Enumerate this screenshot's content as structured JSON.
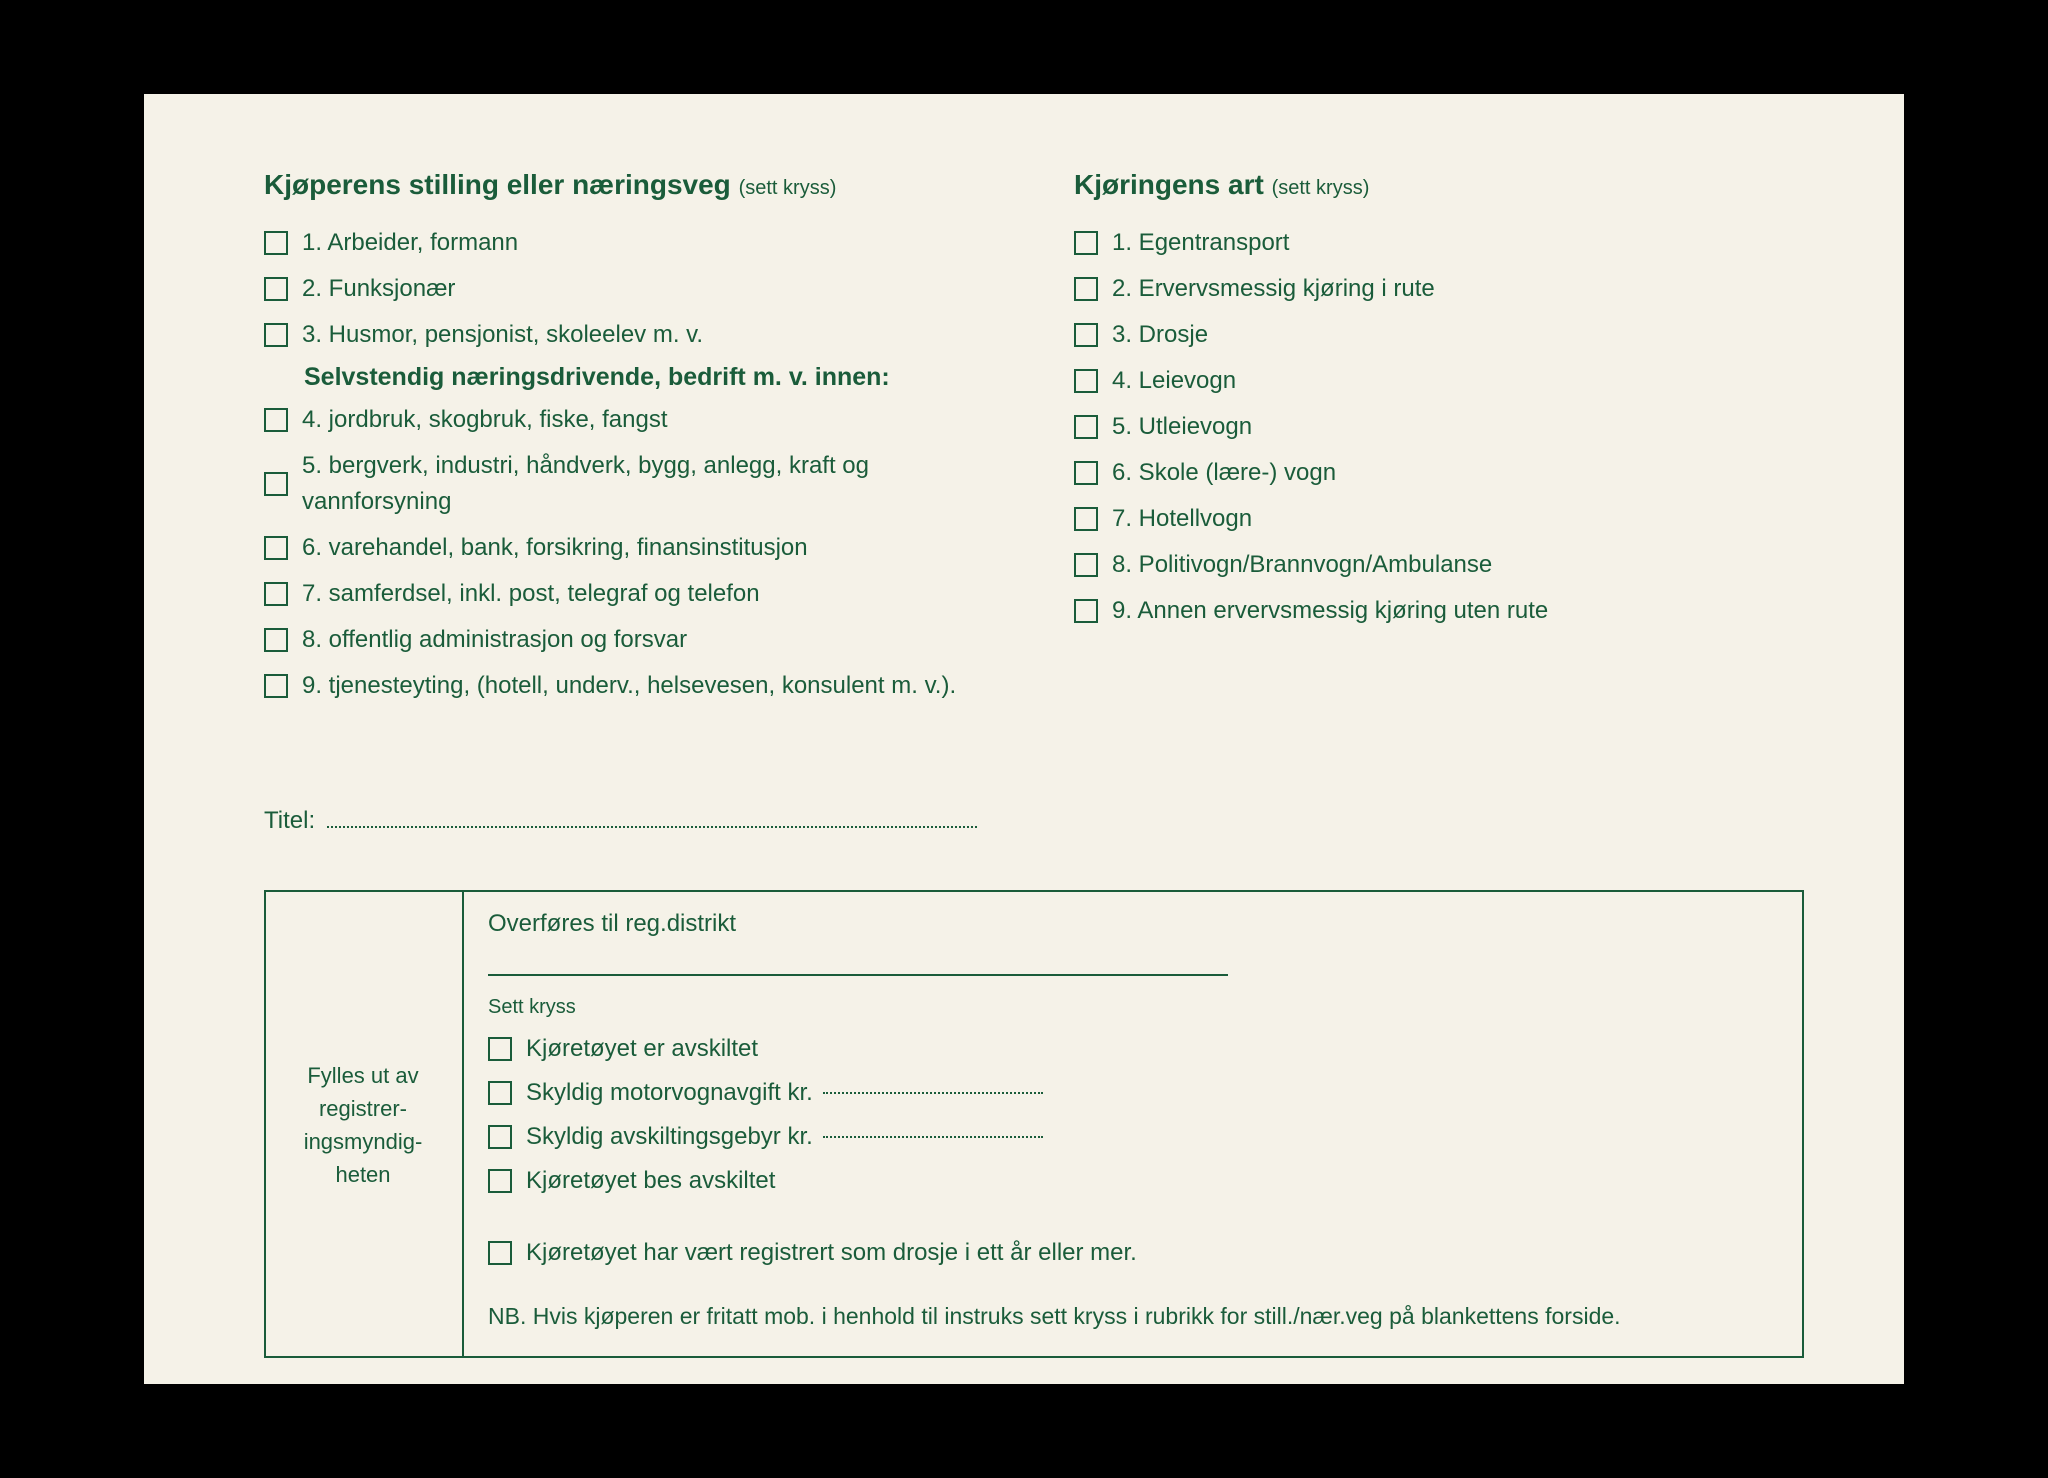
{
  "colors": {
    "ink": "#1a5c3a",
    "paper": "#f5f2e8",
    "background": "#000000"
  },
  "left_section": {
    "title": "Kjøperens stilling eller næringsveg",
    "hint": "(sett kryss)",
    "items_a": [
      "1. Arbeider, formann",
      "2. Funksjonær",
      "3. Husmor, pensjonist, skoleelev m. v."
    ],
    "subheading": "Selvstendig næringsdrivende, bedrift m. v. innen:",
    "items_b": [
      "4. jordbruk, skogbruk, fiske, fangst",
      "5. bergverk, industri, håndverk, bygg, anlegg, kraft og vannforsyning",
      "6. varehandel, bank, forsikring, finansinstitusjon",
      "7. samferdsel, inkl. post, telegraf og telefon",
      "8. offentlig administrasjon og forsvar",
      "9. tjenesteyting, (hotell, underv., helsevesen, konsulent m. v.)."
    ]
  },
  "right_section": {
    "title": "Kjøringens art",
    "hint": "(sett kryss)",
    "items": [
      "1. Egentransport",
      "2. Ervervsmessig kjøring i rute",
      "3. Drosje",
      "4. Leievogn",
      "5. Utleievogn",
      "6. Skole (lære-) vogn",
      "7. Hotellvogn",
      "8. Politivogn/Brannvogn/Ambulanse",
      "9. Annen ervervsmessig kjøring uten rute"
    ]
  },
  "titel_label": "Titel:",
  "bottom_box": {
    "side_label": "Fylles ut av registrer-ingsmyndig-heten",
    "transfer_label": "Overføres til reg.distrikt",
    "sett_kryss": "Sett kryss",
    "items": [
      "Kjøretøyet er avskiltet",
      "Skyldig motorvognavgift kr.",
      "Skyldig avskiltingsgebyr kr.",
      "Kjøretøyet bes avskiltet"
    ],
    "item_extra": "Kjøretøyet har vært registrert som drosje i ett år eller mer.",
    "nb": "NB. Hvis kjøperen er fritatt mob. i henhold til instruks sett kryss i rubrikk for still./nær.veg på blankettens forside."
  }
}
